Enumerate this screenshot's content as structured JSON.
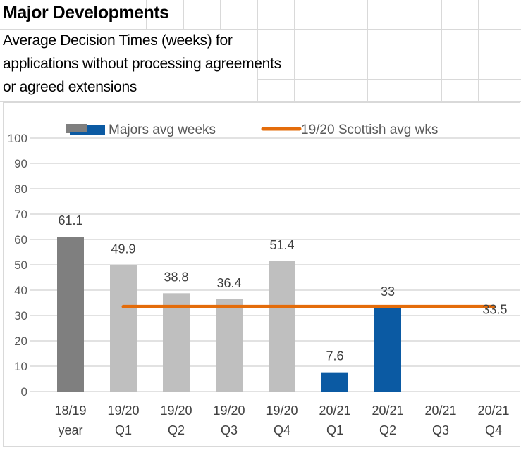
{
  "sheet": {
    "title": "Major Developments",
    "subtitle_lines": [
      "Average Decision Times (weeks) for",
      "applications without processing agreements",
      "or agreed extensions"
    ]
  },
  "chart_data": {
    "type": "bar",
    "categories": [
      [
        "18/19",
        "year"
      ],
      [
        "19/20",
        "Q1"
      ],
      [
        "19/20",
        "Q2"
      ],
      [
        "19/20",
        "Q3"
      ],
      [
        "19/20",
        "Q4"
      ],
      [
        "20/21",
        "Q1"
      ],
      [
        "20/21",
        "Q2"
      ],
      [
        "20/21",
        "Q3"
      ],
      [
        "20/21",
        "Q4"
      ]
    ],
    "series": [
      {
        "name": "Majors avg weeks",
        "values": [
          61.1,
          49.9,
          38.8,
          36.4,
          51.4,
          7.6,
          33,
          null,
          null
        ],
        "colors": [
          "#7f7f7f",
          "#bfbfbf",
          "#bfbfbf",
          "#bfbfbf",
          "#bfbfbf",
          "#0b5aa3",
          "#0b5aa3",
          "#0b5aa3",
          "#0b5aa3"
        ]
      },
      {
        "name": "19/20 Scottish avg wks",
        "type": "line",
        "value": 33.5,
        "from_category": 1,
        "to_category": 8,
        "color": "#e46c0a",
        "label": "33.5"
      }
    ],
    "ylim": [
      0,
      100
    ],
    "yticks": [
      0,
      10,
      20,
      30,
      40,
      50,
      60,
      70,
      80,
      90,
      100
    ],
    "grid": true,
    "legend": "top",
    "data_labels": [
      "61.1",
      "49.9",
      "38.8",
      "36.4",
      "51.4",
      "7.6",
      "33"
    ]
  }
}
